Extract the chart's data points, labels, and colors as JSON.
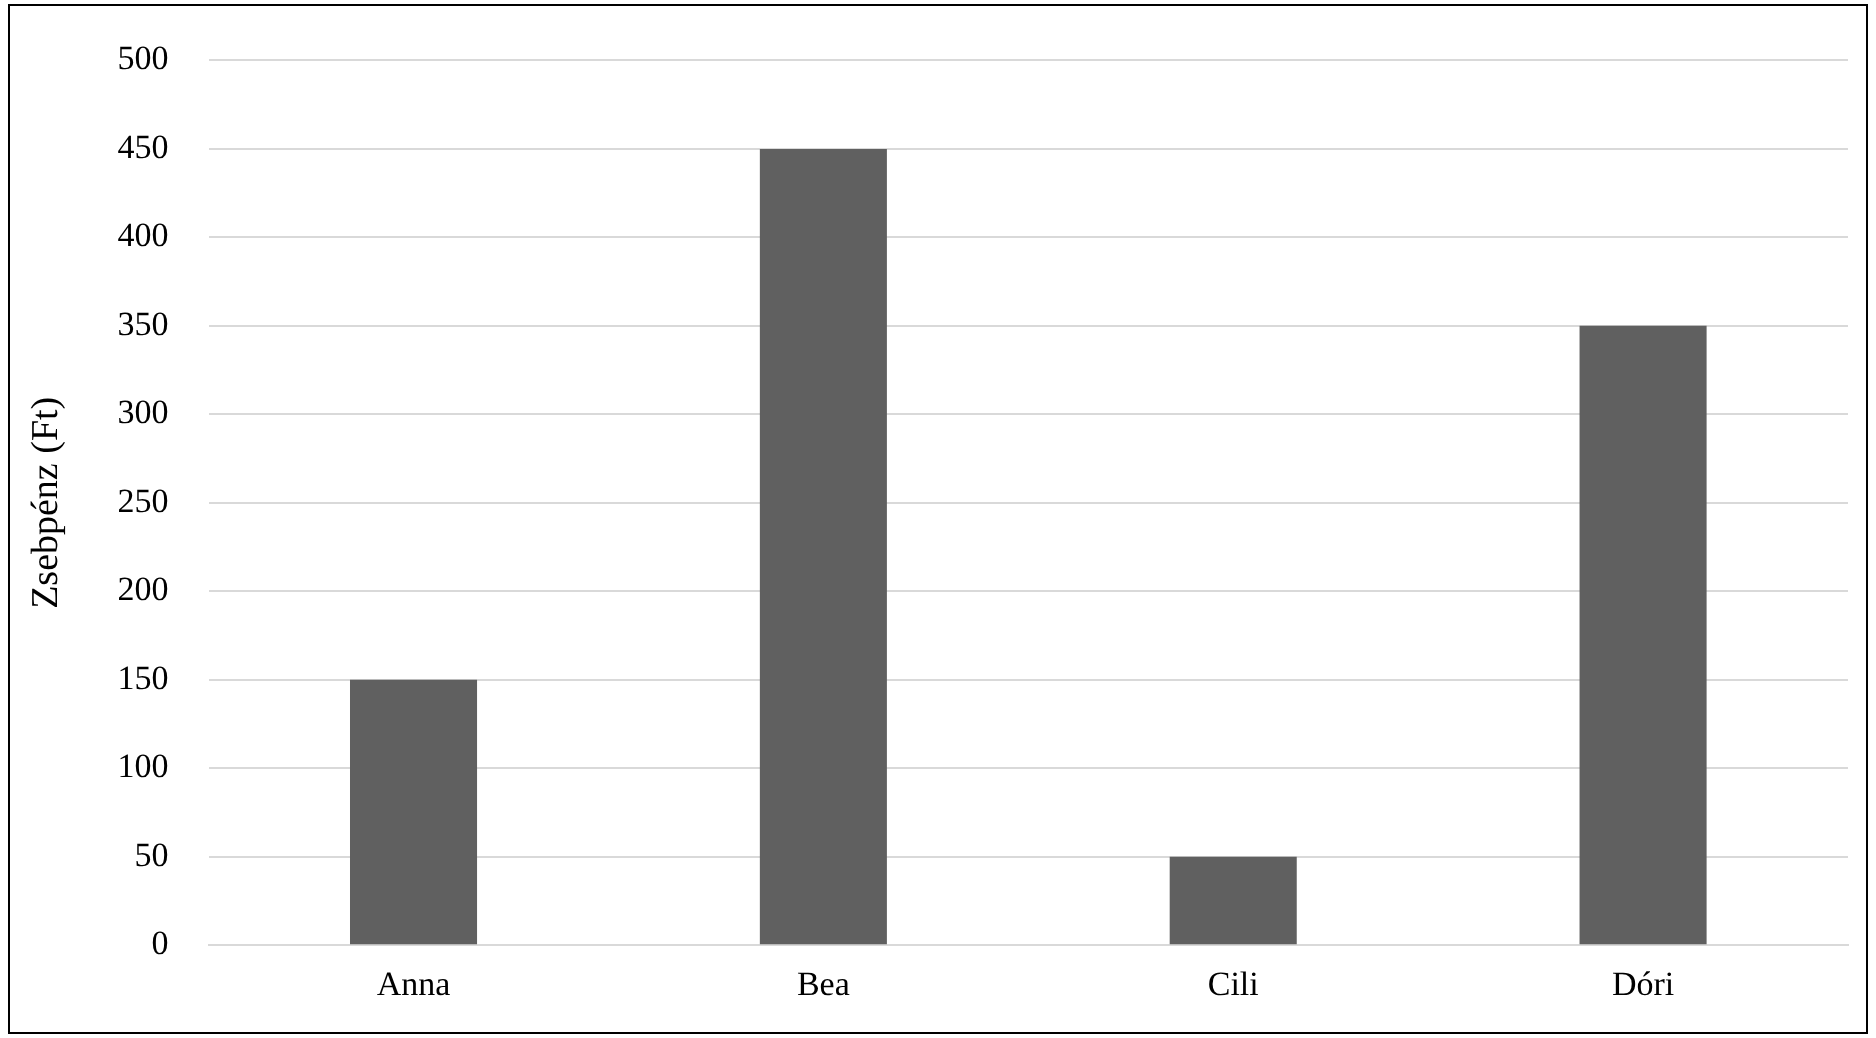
{
  "chart_data": {
    "type": "bar",
    "ylabel": "Zsebpénz (Ft)",
    "categories": [
      "Anna",
      "Bea",
      "Cili",
      "Dóri"
    ],
    "values": [
      150,
      450,
      50,
      350
    ],
    "color": "#606060",
    "ylim": [
      0,
      500
    ],
    "yticks": [
      0,
      50,
      100,
      150,
      200,
      250,
      300,
      350,
      400,
      450,
      500
    ],
    "grid": "y"
  }
}
